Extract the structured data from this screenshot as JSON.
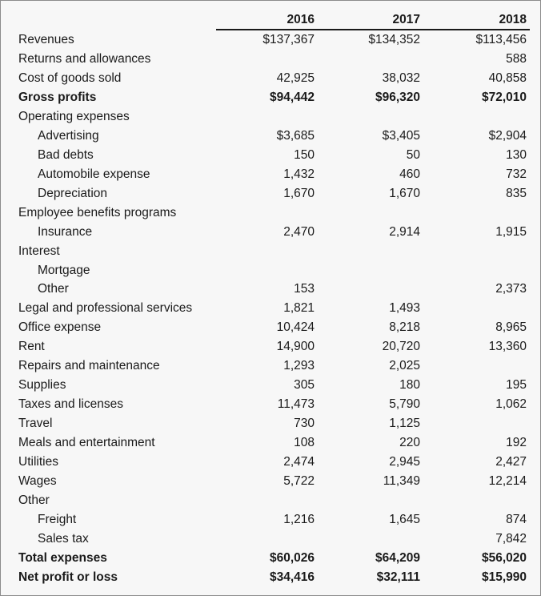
{
  "columns": [
    "2016",
    "2017",
    "2018"
  ],
  "rows": [
    {
      "label": "Revenues",
      "indent": false,
      "bold": false,
      "values": [
        "$137,367",
        "$134,352",
        "$113,456"
      ]
    },
    {
      "label": "Returns and allowances",
      "indent": false,
      "bold": false,
      "values": [
        "",
        "",
        "588"
      ]
    },
    {
      "label": "Cost of goods sold",
      "indent": false,
      "bold": false,
      "values": [
        "42,925",
        "38,032",
        "40,858"
      ]
    },
    {
      "label": "Gross profits",
      "indent": false,
      "bold": true,
      "values": [
        "$94,442",
        "$96,320",
        "$72,010"
      ]
    },
    {
      "label": "Operating expenses",
      "indent": false,
      "bold": false,
      "values": [
        "",
        "",
        ""
      ]
    },
    {
      "label": "Advertising",
      "indent": true,
      "bold": false,
      "values": [
        "$3,685",
        "$3,405",
        "$2,904"
      ]
    },
    {
      "label": "Bad debts",
      "indent": true,
      "bold": false,
      "values": [
        "150",
        "50",
        "130"
      ]
    },
    {
      "label": "Automobile expense",
      "indent": true,
      "bold": false,
      "values": [
        "1,432",
        "460",
        "732"
      ]
    },
    {
      "label": "Depreciation",
      "indent": true,
      "bold": false,
      "values": [
        "1,670",
        "1,670",
        "835"
      ]
    },
    {
      "label": "Employee benefits programs",
      "indent": false,
      "bold": false,
      "values": [
        "",
        "",
        ""
      ]
    },
    {
      "label": "Insurance",
      "indent": true,
      "bold": false,
      "values": [
        "2,470",
        "2,914",
        "1,915"
      ]
    },
    {
      "label": "Interest",
      "indent": false,
      "bold": false,
      "values": [
        "",
        "",
        ""
      ]
    },
    {
      "label": "Mortgage",
      "indent": true,
      "bold": false,
      "values": [
        "",
        "",
        ""
      ]
    },
    {
      "label": "Other",
      "indent": true,
      "bold": false,
      "values": [
        "153",
        "",
        "2,373"
      ]
    },
    {
      "label": "Legal and professional services",
      "indent": false,
      "bold": false,
      "values": [
        "1,821",
        "1,493",
        ""
      ]
    },
    {
      "label": "Office expense",
      "indent": false,
      "bold": false,
      "values": [
        "10,424",
        "8,218",
        "8,965"
      ]
    },
    {
      "label": "Rent",
      "indent": false,
      "bold": false,
      "values": [
        "14,900",
        "20,720",
        "13,360"
      ]
    },
    {
      "label": "Repairs and maintenance",
      "indent": false,
      "bold": false,
      "values": [
        "1,293",
        "2,025",
        ""
      ]
    },
    {
      "label": "Supplies",
      "indent": false,
      "bold": false,
      "values": [
        "305",
        "180",
        "195"
      ]
    },
    {
      "label": "Taxes and licenses",
      "indent": false,
      "bold": false,
      "values": [
        "11,473",
        "5,790",
        "1,062"
      ]
    },
    {
      "label": "Travel",
      "indent": false,
      "bold": false,
      "values": [
        "730",
        "1,125",
        ""
      ]
    },
    {
      "label": "Meals and entertainment",
      "indent": false,
      "bold": false,
      "values": [
        "108",
        "220",
        "192"
      ]
    },
    {
      "label": "Utilities",
      "indent": false,
      "bold": false,
      "values": [
        "2,474",
        "2,945",
        "2,427"
      ]
    },
    {
      "label": "Wages",
      "indent": false,
      "bold": false,
      "values": [
        "5,722",
        "11,349",
        "12,214"
      ]
    },
    {
      "label": "Other",
      "indent": false,
      "bold": false,
      "values": [
        "",
        "",
        ""
      ]
    },
    {
      "label": "Freight",
      "indent": true,
      "bold": false,
      "values": [
        "1,216",
        "1,645",
        "874"
      ]
    },
    {
      "label": "Sales tax",
      "indent": true,
      "bold": false,
      "values": [
        "",
        "",
        "7,842"
      ]
    },
    {
      "label": "Total expenses",
      "indent": false,
      "bold": true,
      "values": [
        "$60,026",
        "$64,209",
        "$56,020"
      ]
    },
    {
      "label": "Net profit or loss",
      "indent": false,
      "bold": true,
      "values": [
        "$34,416",
        "$32,111",
        "$15,990"
      ]
    }
  ]
}
